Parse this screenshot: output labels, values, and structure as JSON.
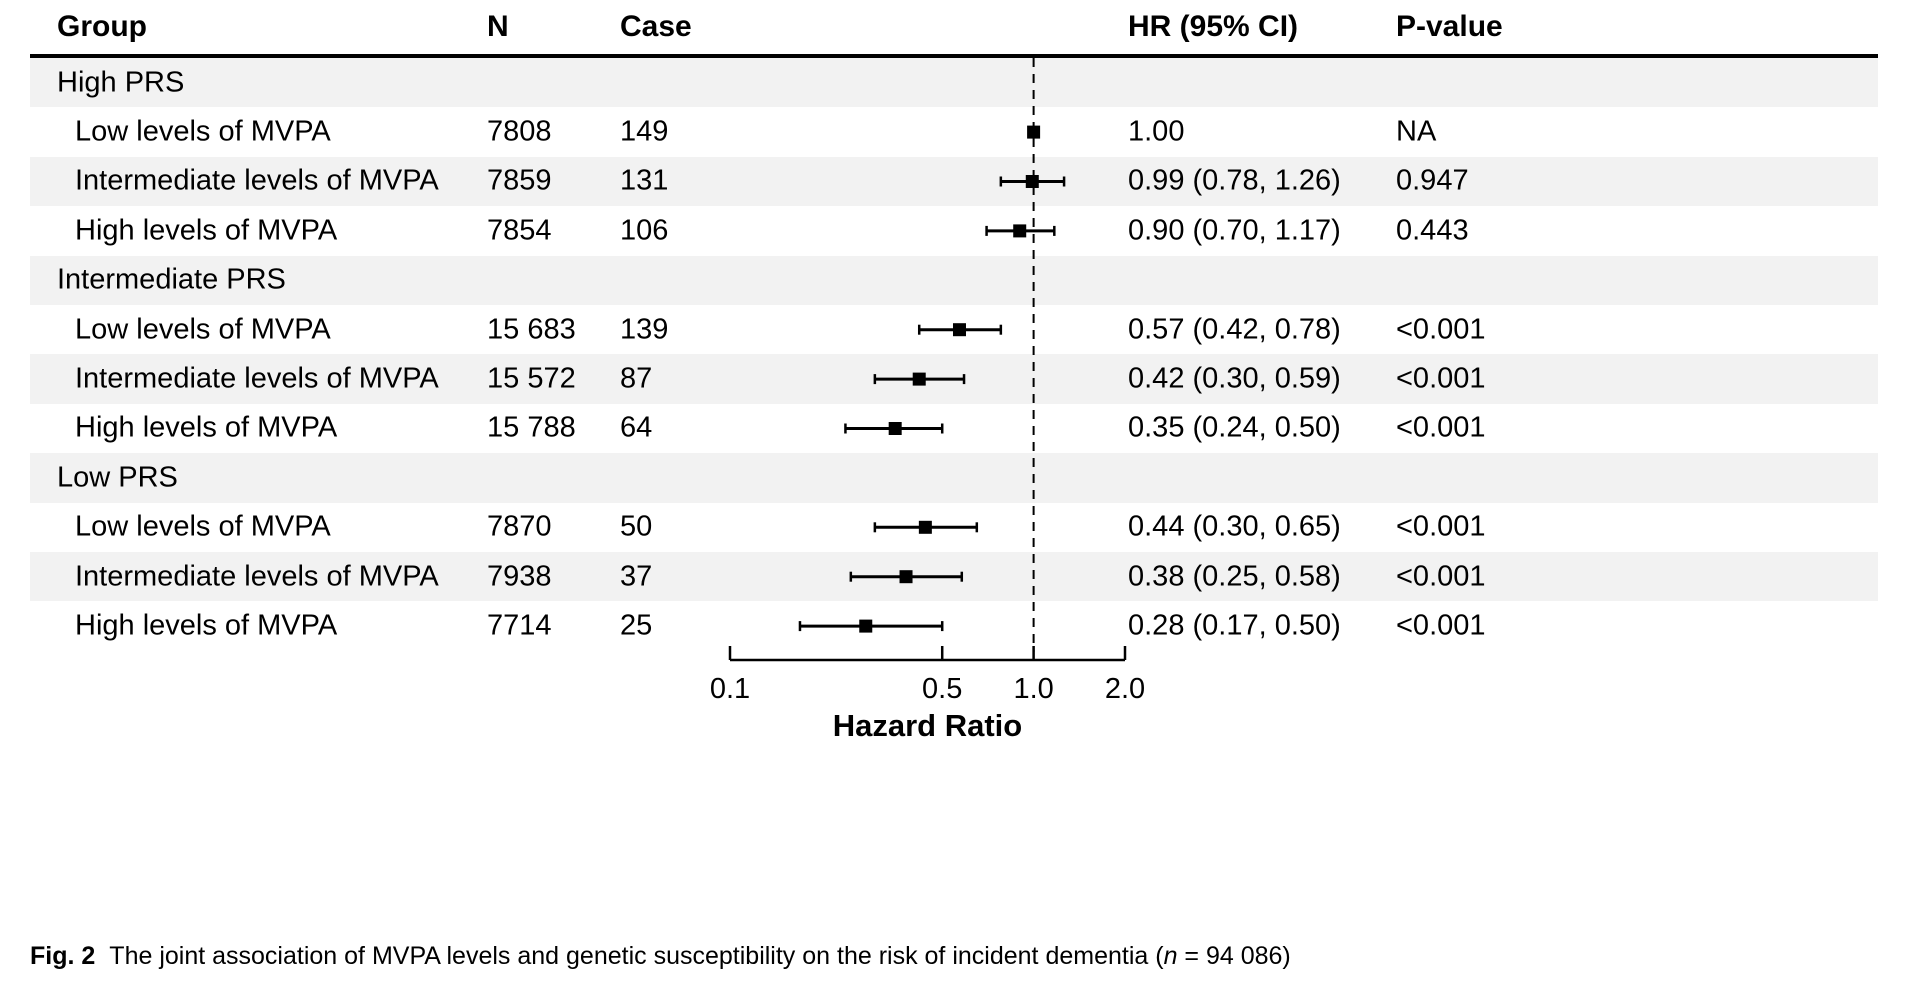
{
  "colors": {
    "text": "#000000",
    "row_shade": "#f2f2f2",
    "line": "#000000",
    "background": "#ffffff"
  },
  "table": {
    "headers": {
      "group": "Group",
      "n": "N",
      "case": "Case",
      "hr": "HR (95% CI)",
      "p": "P-value"
    },
    "rows": [
      {
        "type": "group",
        "label": "High PRS"
      },
      {
        "type": "data",
        "label": "Low levels of MVPA",
        "n": "7808",
        "cases": "149",
        "hr_text": "1.00",
        "p": "NA",
        "hr": 1.0,
        "lo": null,
        "hi": null
      },
      {
        "type": "data",
        "label": "Intermediate levels of MVPA",
        "n": "7859",
        "cases": "131",
        "hr_text": "0.99 (0.78, 1.26)",
        "p": "0.947",
        "hr": 0.99,
        "lo": 0.78,
        "hi": 1.26
      },
      {
        "type": "data",
        "label": "High levels of MVPA",
        "n": "7854",
        "cases": "106",
        "hr_text": "0.90 (0.70, 1.17)",
        "p": "0.443",
        "hr": 0.9,
        "lo": 0.7,
        "hi": 1.17
      },
      {
        "type": "group",
        "label": "Intermediate PRS"
      },
      {
        "type": "data",
        "label": "Low levels of MVPA",
        "n": "15 683",
        "cases": "139",
        "hr_text": "0.57 (0.42, 0.78)",
        "p": "<0.001",
        "hr": 0.57,
        "lo": 0.42,
        "hi": 0.78
      },
      {
        "type": "data",
        "label": "Intermediate levels of MVPA",
        "n": "15 572",
        "cases": "87",
        "hr_text": "0.42 (0.30, 0.59)",
        "p": "<0.001",
        "hr": 0.42,
        "lo": 0.3,
        "hi": 0.59
      },
      {
        "type": "data",
        "label": "High levels of MVPA",
        "n": "15 788",
        "cases": "64",
        "hr_text": "0.35 (0.24, 0.50)",
        "p": "<0.001",
        "hr": 0.35,
        "lo": 0.24,
        "hi": 0.5
      },
      {
        "type": "group",
        "label": "Low PRS"
      },
      {
        "type": "data",
        "label": "Low levels of MVPA",
        "n": "7870",
        "cases": "50",
        "hr_text": "0.44 (0.30, 0.65)",
        "p": "<0.001",
        "hr": 0.44,
        "lo": 0.3,
        "hi": 0.65
      },
      {
        "type": "data",
        "label": "Intermediate levels of MVPA",
        "n": "7938",
        "cases": "37",
        "hr_text": "0.38 (0.25, 0.58)",
        "p": "<0.001",
        "hr": 0.38,
        "lo": 0.25,
        "hi": 0.58
      },
      {
        "type": "data",
        "label": "High levels of MVPA",
        "n": "7714",
        "cases": "25",
        "hr_text": "0.28 (0.17, 0.50)",
        "p": "<0.001",
        "hr": 0.28,
        "lo": 0.17,
        "hi": 0.5
      }
    ]
  },
  "chart_data": {
    "type": "forest",
    "title": "",
    "xlabel": "Hazard Ratio",
    "x_scale": "log10",
    "xlim": [
      0.1,
      2.0
    ],
    "x_tick_values": [
      0.1,
      0.5,
      1.0,
      2.0
    ],
    "x_tick_labels": [
      "0.1",
      "0.5",
      "1.0",
      "2.0"
    ],
    "reference_line": 1.0,
    "groups": [
      {
        "group": "High PRS",
        "points": [
          {
            "label": "Low levels of MVPA",
            "n": 7808,
            "cases": 149,
            "hr": 1.0,
            "ci_low": null,
            "ci_high": null,
            "p": "NA"
          },
          {
            "label": "Intermediate levels of MVPA",
            "n": 7859,
            "cases": 131,
            "hr": 0.99,
            "ci_low": 0.78,
            "ci_high": 1.26,
            "p": "0.947"
          },
          {
            "label": "High levels of MVPA",
            "n": 7854,
            "cases": 106,
            "hr": 0.9,
            "ci_low": 0.7,
            "ci_high": 1.17,
            "p": "0.443"
          }
        ]
      },
      {
        "group": "Intermediate PRS",
        "points": [
          {
            "label": "Low levels of MVPA",
            "n": 15683,
            "cases": 139,
            "hr": 0.57,
            "ci_low": 0.42,
            "ci_high": 0.78,
            "p": "<0.001"
          },
          {
            "label": "Intermediate levels of MVPA",
            "n": 15572,
            "cases": 87,
            "hr": 0.42,
            "ci_low": 0.3,
            "ci_high": 0.59,
            "p": "<0.001"
          },
          {
            "label": "High levels of MVPA",
            "n": 15788,
            "cases": 64,
            "hr": 0.35,
            "ci_low": 0.24,
            "ci_high": 0.5,
            "p": "<0.001"
          }
        ]
      },
      {
        "group": "Low PRS",
        "points": [
          {
            "label": "Low levels of MVPA",
            "n": 7870,
            "cases": 50,
            "hr": 0.44,
            "ci_low": 0.3,
            "ci_high": 0.65,
            "p": "<0.001"
          },
          {
            "label": "Intermediate levels of MVPA",
            "n": 7938,
            "cases": 37,
            "hr": 0.38,
            "ci_low": 0.25,
            "ci_high": 0.58,
            "p": "<0.001"
          },
          {
            "label": "High levels of MVPA",
            "n": 7714,
            "cases": 25,
            "hr": 0.28,
            "ci_low": 0.17,
            "ci_high": 0.5,
            "p": "<0.001"
          }
        ]
      }
    ]
  },
  "caption": {
    "fig_label": "Fig. 2",
    "text": "The joint association of MVPA levels and genetic susceptibility on the risk of incident dementia (",
    "n_symbol": "n",
    "n_suffix": " = 94 086)"
  }
}
